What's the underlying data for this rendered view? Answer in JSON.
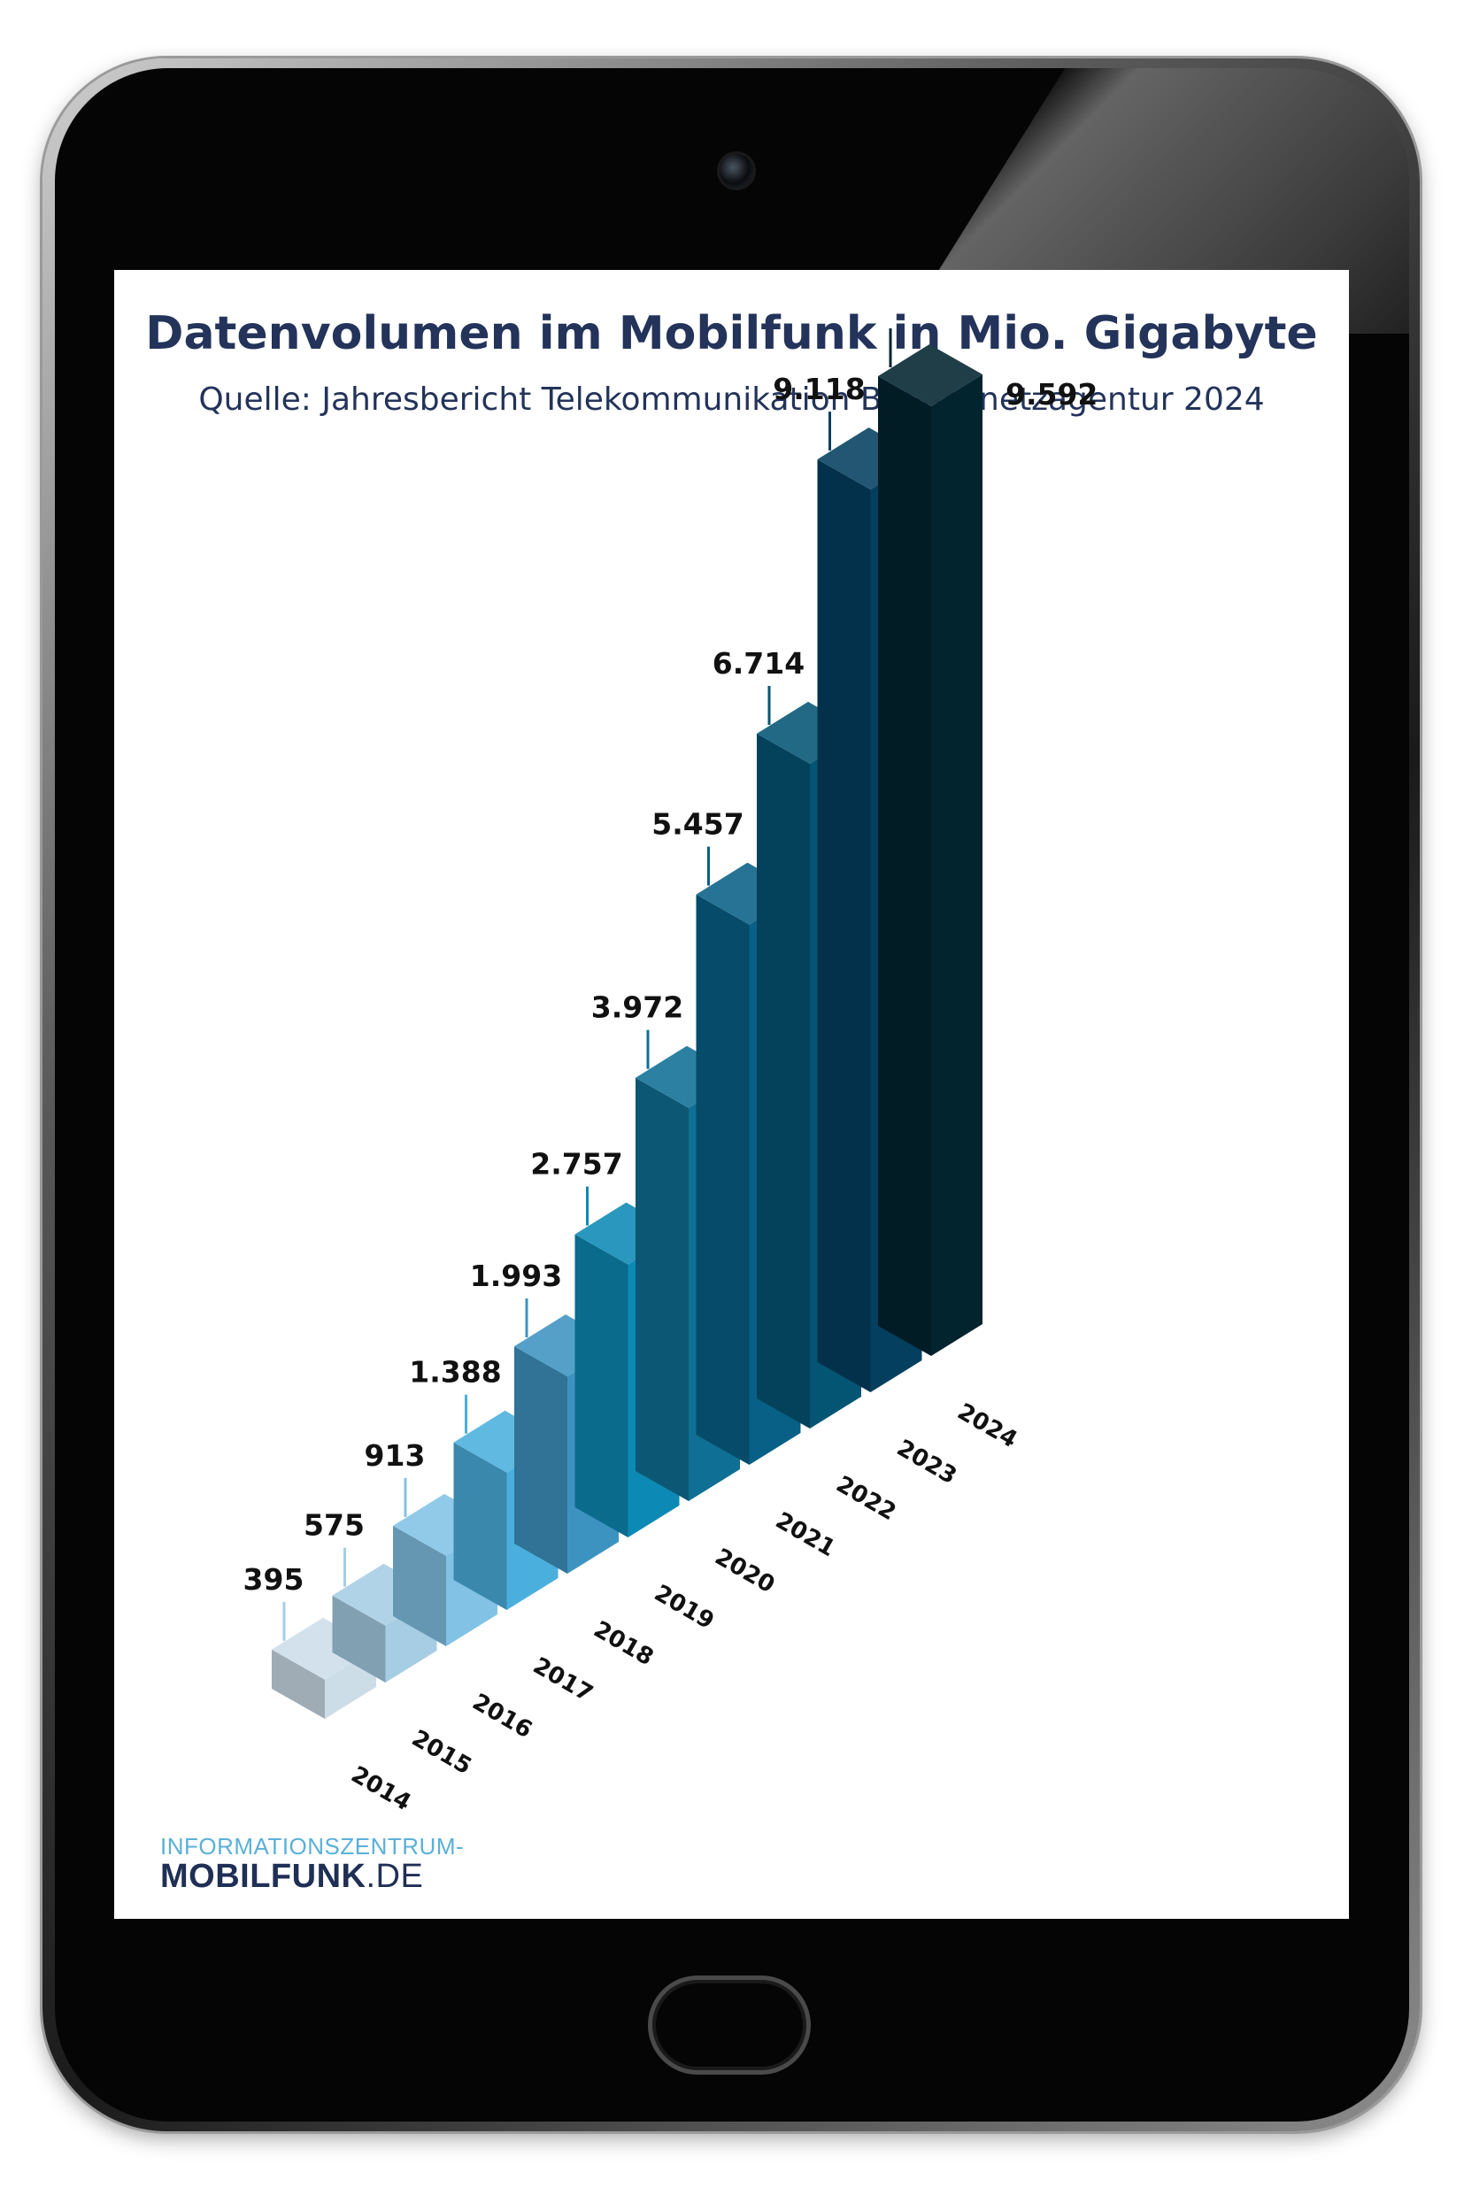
{
  "chart_data": {
    "type": "bar",
    "title": "Datenvolumen im Mobilfunk in Mio. Gigabyte",
    "subtitle": "Quelle: Jahresbericht Telekommunikation Bundesnetzagentur 2024",
    "categories": [
      "2014",
      "2015",
      "2016",
      "2017",
      "2018",
      "2019",
      "2020",
      "2021",
      "2022",
      "2023",
      "2024"
    ],
    "values": [
      395,
      575,
      913,
      1388,
      1993,
      2757,
      3972,
      5457,
      6714,
      9118,
      9592
    ],
    "value_labels": [
      "395",
      "575",
      "913",
      "1.388",
      "1.993",
      "2.757",
      "3.972",
      "5.457",
      "6.714",
      "9.118",
      "9.592"
    ],
    "colors": [
      "#ccdde8",
      "#a6cde4",
      "#82c2e5",
      "#4aafdd",
      "#3d93c0",
      "#0d89b5",
      "#0f6f94",
      "#086086",
      "#045574",
      "#043f60",
      "#02242f"
    ],
    "xlabel": "",
    "ylabel": "",
    "grid": false,
    "legend": "none"
  },
  "logo": {
    "line1": "INFORMATIONSZENTRUM-",
    "line2_bold": "MOBILFUNK",
    "line2_rest": ".DE"
  }
}
